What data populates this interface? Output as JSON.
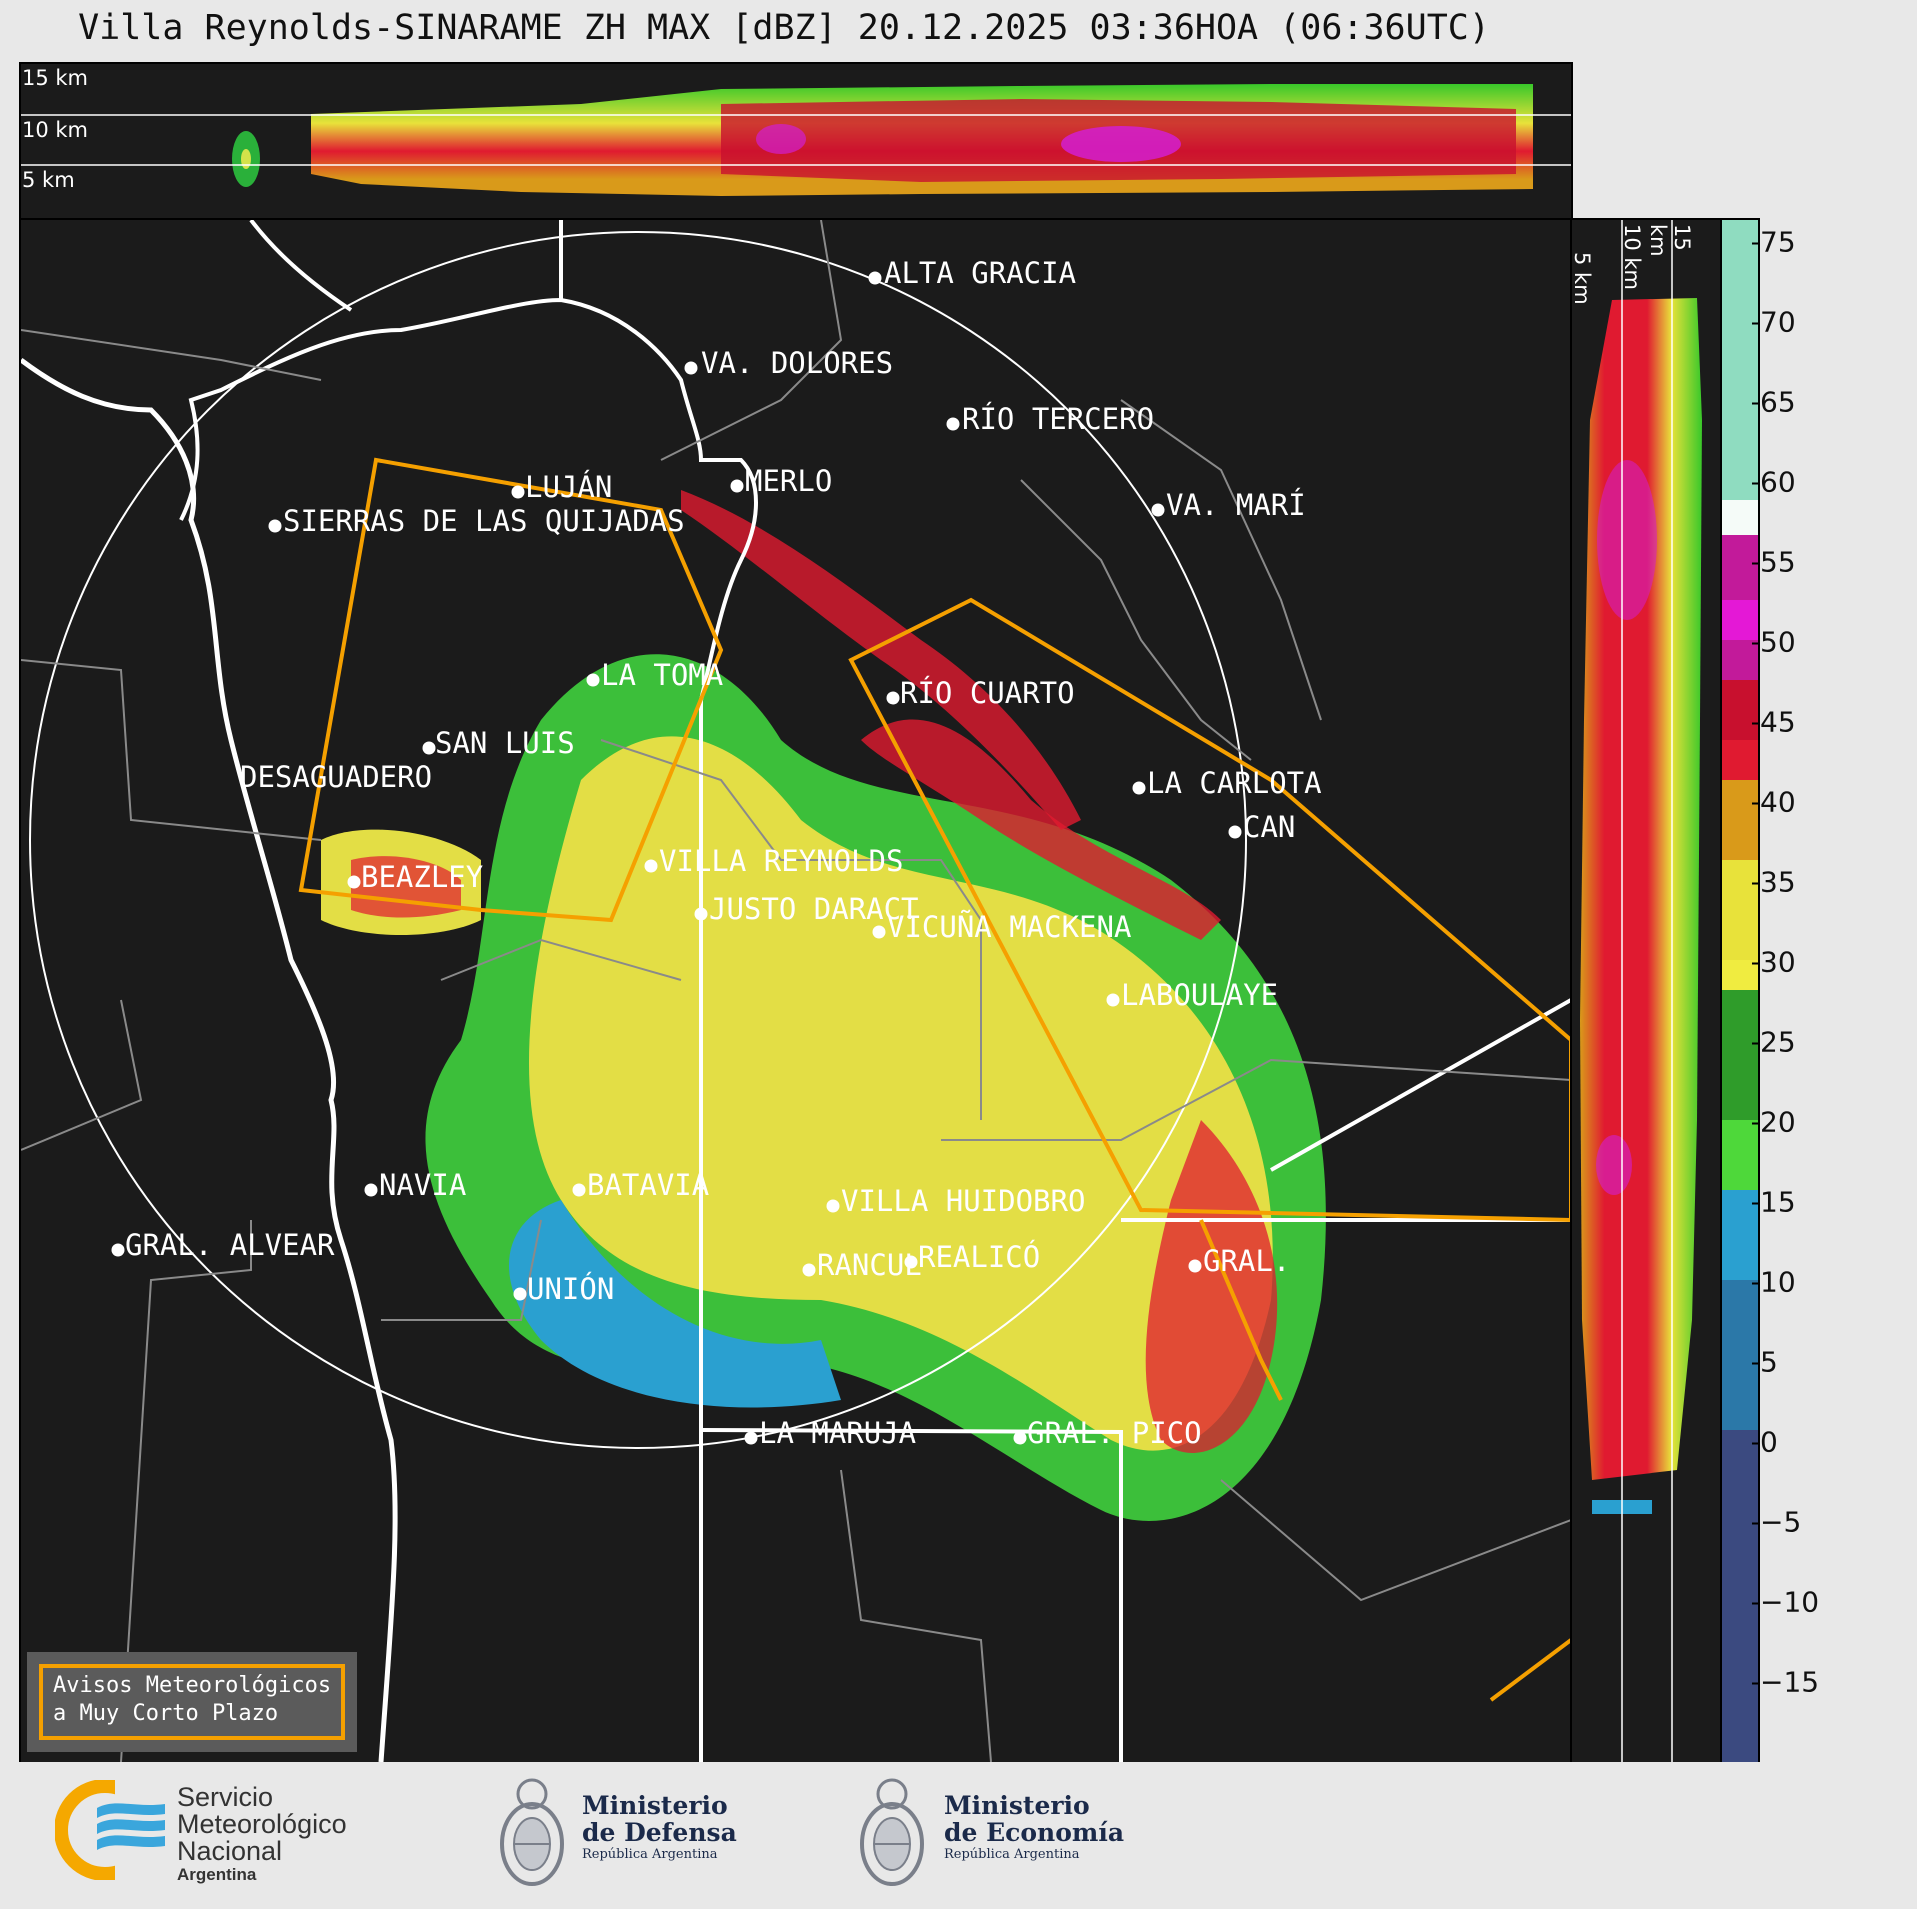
{
  "title": "Villa Reynolds-SINARAME ZH MAX [dBZ] 20.12.2025 03:36HOA (06:36UTC)",
  "top_panel": {
    "height_labels": [
      "15 km",
      "10 km",
      "5 km"
    ]
  },
  "right_panel": {
    "height_labels": [
      "5 km",
      "10 km",
      "15 km"
    ]
  },
  "colorbar": {
    "unit": "dBZ",
    "ticks": [
      "75",
      "70",
      "65",
      "60",
      "55",
      "50",
      "45",
      "40",
      "35",
      "30",
      "25",
      "20",
      "15",
      "10",
      "5",
      "0",
      "−5",
      "−10",
      "−15"
    ]
  },
  "cities": [
    {
      "name": "ALTA GRACIA"
    },
    {
      "name": "VA. DOLORES"
    },
    {
      "name": "RÍO TERCERO"
    },
    {
      "name": "MERLO"
    },
    {
      "name": "LUJÁN"
    },
    {
      "name": "SIERRAS DE LAS QUIJADAS"
    },
    {
      "name": "VA. MARÍ"
    },
    {
      "name": "LA TOMA"
    },
    {
      "name": "RÍO CUARTO"
    },
    {
      "name": "SAN LUIS"
    },
    {
      "name": "DESAGUADERO"
    },
    {
      "name": "LA CARLOTA"
    },
    {
      "name": "CAN"
    },
    {
      "name": "VILLA REYNOLDS"
    },
    {
      "name": "BEAZLEY"
    },
    {
      "name": "JUSTO DARACT"
    },
    {
      "name": "VICUÑA MACKENA"
    },
    {
      "name": "LABOULAYE"
    },
    {
      "name": "NAVIA"
    },
    {
      "name": "BATAVIA"
    },
    {
      "name": "VILLA HUIDOBRO"
    },
    {
      "name": "GRAL. ALVEAR"
    },
    {
      "name": "RANCUL"
    },
    {
      "name": "REALICÓ"
    },
    {
      "name": "GRAL."
    },
    {
      "name": "UNIÓN"
    },
    {
      "name": "LA MARUJA"
    },
    {
      "name": "GRAL. PICO"
    }
  ],
  "avisos": {
    "line1": "Avisos Meteorológicos",
    "line2": "a Muy Corto Plazo"
  },
  "logos": {
    "smn": {
      "line1": "Servicio",
      "line2": "Meteorológico",
      "line3": "Nacional",
      "line4": "Argentina"
    },
    "defensa": {
      "line1": "Ministerio",
      "line2": "de Defensa",
      "line3": "República Argentina"
    },
    "economia": {
      "line1": "Ministerio",
      "line2": "de Economía",
      "line3": "República Argentina"
    }
  },
  "colors": {
    "alert_polygon": "#f5a000",
    "background": "#1b1b1b"
  }
}
